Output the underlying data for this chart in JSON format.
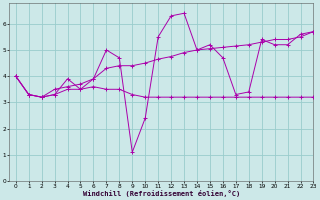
{
  "xlabel": "Windchill (Refroidissement éolien,°C)",
  "bg_color": "#cce8e8",
  "grid_color": "#99cccc",
  "line_color": "#aa00aa",
  "xlim": [
    -0.5,
    23
  ],
  "ylim": [
    0,
    6.8
  ],
  "xticks": [
    0,
    1,
    2,
    3,
    4,
    5,
    6,
    7,
    8,
    9,
    10,
    11,
    12,
    13,
    14,
    15,
    16,
    17,
    18,
    19,
    20,
    21,
    22,
    23
  ],
  "yticks": [
    0,
    1,
    2,
    3,
    4,
    5,
    6
  ],
  "line1_x": [
    0,
    1,
    2,
    3,
    4,
    5,
    6,
    7,
    8,
    9,
    10,
    11,
    12,
    13,
    14,
    15,
    16,
    17,
    18,
    19,
    20,
    21,
    22,
    23
  ],
  "line1_y": [
    4.0,
    3.3,
    3.2,
    3.3,
    3.5,
    3.5,
    3.6,
    3.5,
    3.5,
    3.3,
    3.2,
    3.2,
    3.2,
    3.2,
    3.2,
    3.2,
    3.2,
    3.2,
    3.2,
    3.2,
    3.2,
    3.2,
    3.2,
    3.2
  ],
  "line2_x": [
    0,
    1,
    2,
    3,
    4,
    5,
    6,
    7,
    8,
    9,
    10,
    11,
    12,
    13,
    14,
    15,
    16,
    17,
    18,
    19,
    20,
    21,
    22,
    23
  ],
  "line2_y": [
    4.0,
    3.3,
    3.2,
    3.3,
    3.9,
    3.5,
    3.9,
    5.0,
    4.7,
    1.1,
    2.4,
    5.5,
    6.3,
    6.4,
    5.0,
    5.2,
    4.7,
    3.3,
    3.4,
    5.4,
    5.2,
    5.2,
    5.6,
    5.7
  ],
  "line3_x": [
    0,
    1,
    2,
    3,
    4,
    5,
    6,
    7,
    8,
    9,
    10,
    11,
    12,
    13,
    14,
    15,
    16,
    17,
    18,
    19,
    20,
    21,
    22,
    23
  ],
  "line3_y": [
    4.0,
    3.3,
    3.2,
    3.5,
    3.6,
    3.7,
    3.9,
    4.3,
    4.4,
    4.4,
    4.5,
    4.65,
    4.75,
    4.9,
    5.0,
    5.05,
    5.1,
    5.15,
    5.2,
    5.3,
    5.4,
    5.4,
    5.5,
    5.7
  ]
}
